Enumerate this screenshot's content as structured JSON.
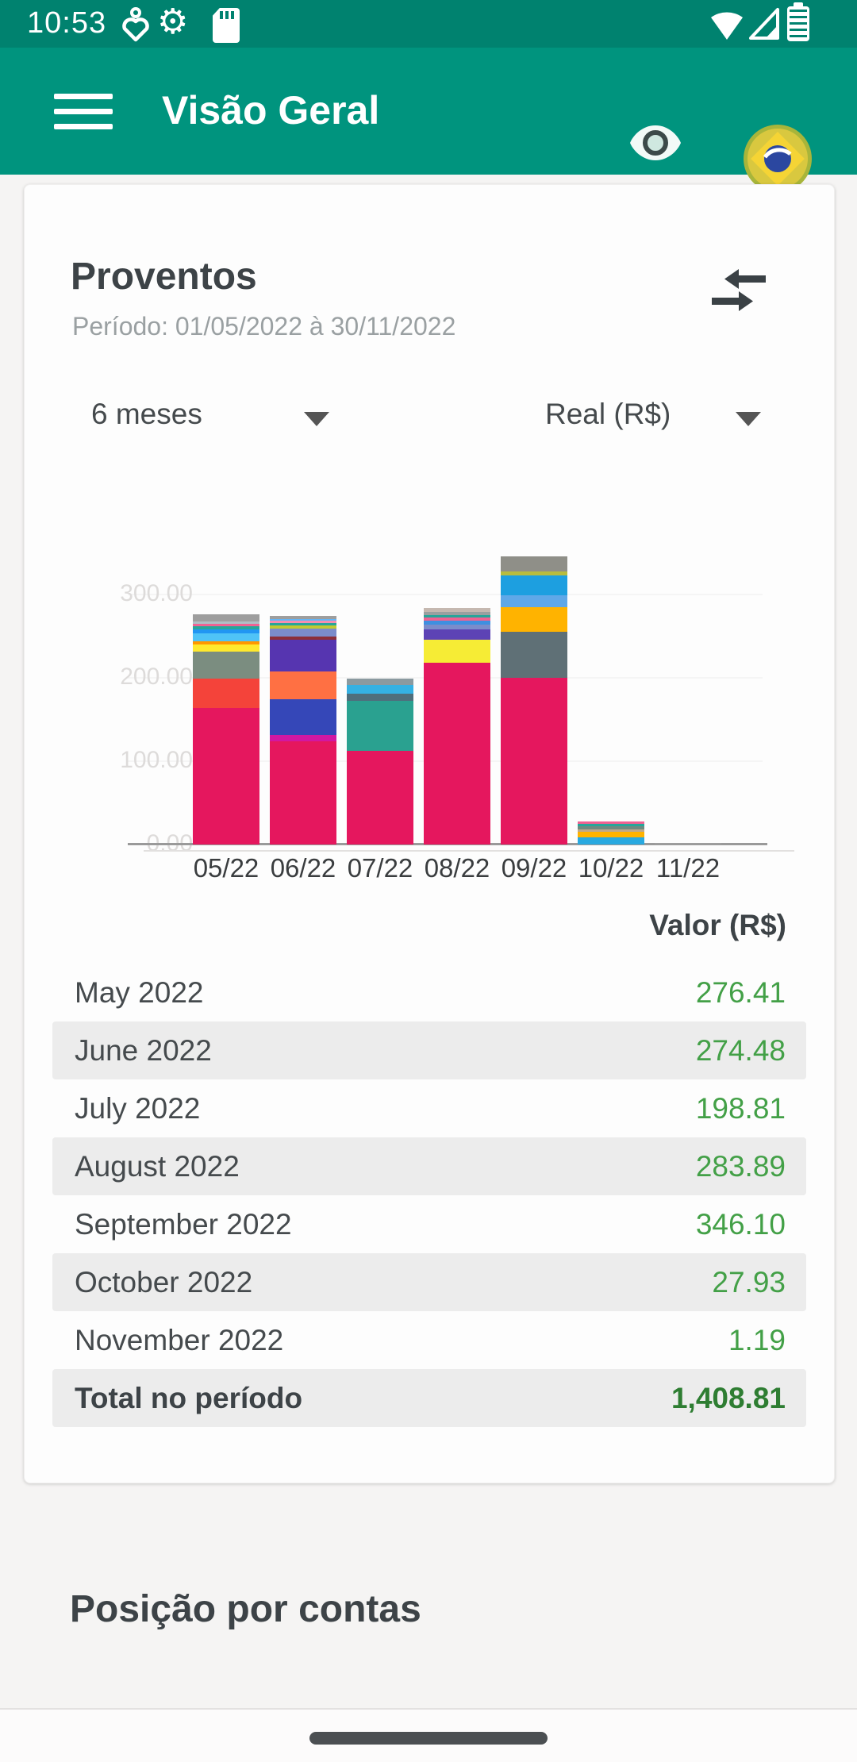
{
  "status_bar": {
    "time": "10:53",
    "icons": [
      "heart-notification",
      "gear-notification",
      "sdcard",
      "wifi",
      "cell-signal",
      "battery-saver"
    ]
  },
  "app_bar": {
    "title": "Visão Geral",
    "icons": [
      "menu",
      "eye-visibility",
      "brazil-flag"
    ]
  },
  "card": {
    "title": "Proventos",
    "subtitle": "Período: 01/05/2022 à 30/11/2022",
    "filters": {
      "period_value": "6 meses",
      "currency_value": "Real (R$)"
    },
    "table": {
      "value_header": "Valor (R$)",
      "rows": [
        {
          "label": "May 2022",
          "value": "276.41"
        },
        {
          "label": "June 2022",
          "value": "274.48"
        },
        {
          "label": "July 2022",
          "value": "198.81"
        },
        {
          "label": "August 2022",
          "value": "283.89"
        },
        {
          "label": "September 2022",
          "value": "346.10"
        },
        {
          "label": "October 2022",
          "value": "27.93"
        },
        {
          "label": "November 2022",
          "value": "1.19"
        }
      ],
      "total": {
        "label": "Total no período",
        "value": "1,408.81"
      }
    }
  },
  "chart_data": {
    "type": "bar",
    "subtype": "stacked",
    "title": "Proventos",
    "xlabel": "",
    "ylabel": "Valor (R$)",
    "ylim": [
      0,
      320
    ],
    "grid": "faint horizontal",
    "legend": "none",
    "categories": [
      "05/22",
      "06/22",
      "07/22",
      "08/22",
      "09/22",
      "10/22",
      "11/22"
    ],
    "totals": [
      276.41,
      274.48,
      198.81,
      283.89,
      346.1,
      27.93,
      1.19
    ],
    "y_ticks": [
      {
        "label": "0.00",
        "value": 0
      },
      {
        "label": "100.00",
        "value": 100
      },
      {
        "label": "200.00",
        "value": 200
      },
      {
        "label": "300.00",
        "value": 300
      }
    ],
    "bars": [
      {
        "month": "05/22",
        "total": 276.41,
        "segments": [
          {
            "color": "#e5175e",
            "value": 164.0
          },
          {
            "color": "#f4433a",
            "value": 35.0
          },
          {
            "color": "#7b8d80",
            "value": 32.0
          },
          {
            "color": "#ffe92e",
            "value": 9.0
          },
          {
            "color": "#ff9800",
            "value": 4.0
          },
          {
            "color": "#4fc3f7",
            "value": 9.0
          },
          {
            "color": "#2196f3",
            "value": 5.0
          },
          {
            "color": "#26a69a",
            "value": 4.0
          },
          {
            "color": "#f06292",
            "value": 3.0
          },
          {
            "color": "#b0bec5",
            "value": 3.0
          },
          {
            "color": "#9e9e9e",
            "value": 8.41
          }
        ]
      },
      {
        "month": "06/22",
        "total": 274.48,
        "segments": [
          {
            "color": "#e5175e",
            "value": 124.0
          },
          {
            "color": "#d118a2",
            "value": 7.0
          },
          {
            "color": "#3547b8",
            "value": 43.0
          },
          {
            "color": "#ff7043",
            "value": 34.0
          },
          {
            "color": "#5635b0",
            "value": 38.0
          },
          {
            "color": "#8c2f39",
            "value": 4.0
          },
          {
            "color": "#7b8ccb",
            "value": 9.0
          },
          {
            "color": "#c0ca33",
            "value": 4.0
          },
          {
            "color": "#26a69a",
            "value": 3.0
          },
          {
            "color": "#f48fb1",
            "value": 3.0
          },
          {
            "color": "#64b5f6",
            "value": 2.0
          },
          {
            "color": "#9e9e9e",
            "value": 3.48
          }
        ]
      },
      {
        "month": "07/22",
        "total": 198.81,
        "segments": [
          {
            "color": "#e5175e",
            "value": 112.0
          },
          {
            "color": "#2aa190",
            "value": 60.0
          },
          {
            "color": "#4f6e7c",
            "value": 9.0
          },
          {
            "color": "#35b1e3",
            "value": 10.0
          },
          {
            "color": "#8b9aa0",
            "value": 7.81
          }
        ]
      },
      {
        "month": "08/22",
        "total": 283.89,
        "segments": [
          {
            "color": "#e5175e",
            "value": 218.0
          },
          {
            "color": "#f6ec35",
            "value": 28.0
          },
          {
            "color": "#5d43b5",
            "value": 12.0
          },
          {
            "color": "#7b8ccb",
            "value": 6.0
          },
          {
            "color": "#3f8fe0",
            "value": 5.0
          },
          {
            "color": "#f06292",
            "value": 3.0
          },
          {
            "color": "#26a69a",
            "value": 3.0
          },
          {
            "color": "#9aa0a0",
            "value": 4.0
          },
          {
            "color": "#c5b8b0",
            "value": 4.89
          }
        ]
      },
      {
        "month": "09/22",
        "total": 346.1,
        "segments": [
          {
            "color": "#e5175e",
            "value": 200.0
          },
          {
            "color": "#5f7076",
            "value": 55.0
          },
          {
            "color": "#ffb300",
            "value": 30.0
          },
          {
            "color": "#5fa8e8",
            "value": 14.0
          },
          {
            "color": "#1d9fe0",
            "value": 24.0
          },
          {
            "color": "#b8bc3e",
            "value": 5.0
          },
          {
            "color": "#8f8f88",
            "value": 18.1
          }
        ]
      },
      {
        "month": "10/22",
        "total": 27.93,
        "segments": [
          {
            "color": "#29a9e0",
            "value": 9.0
          },
          {
            "color": "#ffb300",
            "value": 6.0
          },
          {
            "color": "#c0a98a",
            "value": 3.0
          },
          {
            "color": "#6f8a80",
            "value": 4.0
          },
          {
            "color": "#26a69a",
            "value": 3.0
          },
          {
            "color": "#ef6292",
            "value": 2.93
          }
        ]
      },
      {
        "month": "11/22",
        "total": 1.19,
        "segments": [
          {
            "color": "#9e9e9e",
            "value": 1.19
          }
        ]
      }
    ]
  },
  "section2": {
    "title": "Posição por contas"
  },
  "colors": {
    "status_bar": "#00826f",
    "app_bar": "#00947e",
    "value_green": "#43a047",
    "total_green": "#2e7d32",
    "row_shade": "#ececec",
    "crimson_primary": "#e5175e"
  }
}
